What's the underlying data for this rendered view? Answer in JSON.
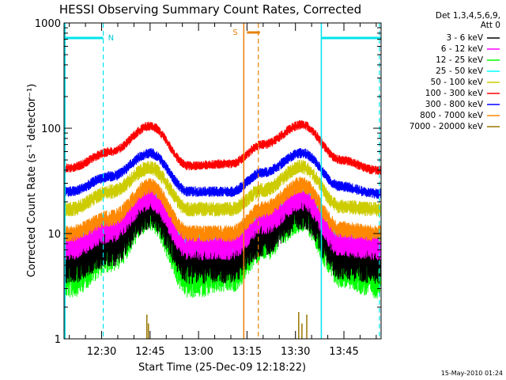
{
  "chart_data": {
    "type": "line",
    "title": "HESSI Observing Summary Count Rates, Corrected",
    "xlabel": "Start Time (25-Dec-09 12:18:22)",
    "ylabel": "Corrected Count Rate (s⁻¹ detector⁻¹)",
    "yscale": "log",
    "ylim": [
      1,
      1000
    ],
    "y_tick_labels": [
      "1",
      "10",
      "100",
      "1000"
    ],
    "xlim": [
      "12:18:22",
      "13:56:30"
    ],
    "x_tick_labels": [
      "12:30",
      "12:45",
      "13:00",
      "13:15",
      "13:30",
      "13:45"
    ],
    "legend_header": [
      "Det 1,3,4,5,6,9,",
      "Att 0"
    ],
    "series": [
      {
        "name": "3 - 6 keV",
        "color": "#000000",
        "times": [
          "12:20",
          "12:33",
          "12:45",
          "12:57",
          "13:10",
          "13:20",
          "13:32",
          "13:44",
          "13:55"
        ],
        "values": [
          5.5,
          8,
          18,
          5.5,
          5.5,
          10,
          18,
          6,
          5.5
        ]
      },
      {
        "name": "6 - 12 keV",
        "color": "#ff00ff",
        "times": [
          "12:20",
          "12:33",
          "12:45",
          "12:57",
          "13:10",
          "13:20",
          "13:32",
          "13:44",
          "13:55"
        ],
        "values": [
          7.5,
          11,
          22,
          7.5,
          7.5,
          13,
          22,
          8,
          7.5
        ]
      },
      {
        "name": "12 - 25 keV",
        "color": "#00ff00",
        "times": [
          "12:20",
          "12:33",
          "12:45",
          "12:57",
          "13:10",
          "13:20",
          "13:32",
          "13:44",
          "13:55"
        ],
        "values": [
          4,
          7,
          17,
          4,
          4.5,
          9,
          17,
          5,
          4
        ]
      },
      {
        "name": "25 - 50 keV",
        "color": "#00ffff",
        "times": [
          "12:20",
          "12:33",
          "12:45",
          "12:57",
          "13:10",
          "13:20",
          "13:32",
          "13:44",
          "13:55"
        ],
        "values": [
          8,
          12,
          24,
          8,
          8,
          14,
          24,
          9,
          8
        ]
      },
      {
        "name": "50 - 100 keV",
        "color": "#cccc00",
        "times": [
          "12:20",
          "12:33",
          "12:45",
          "12:57",
          "13:10",
          "13:20",
          "13:32",
          "13:44",
          "13:55"
        ],
        "values": [
          17,
          25,
          42,
          17,
          17,
          26,
          43,
          18,
          17
        ]
      },
      {
        "name": "100 - 300 keV",
        "color": "#ff0000",
        "times": [
          "12:20",
          "12:33",
          "12:45",
          "12:57",
          "13:10",
          "13:20",
          "13:32",
          "13:44",
          "13:55"
        ],
        "values": [
          42,
          60,
          105,
          44,
          46,
          70,
          108,
          50,
          40
        ]
      },
      {
        "name": "300 - 800 keV",
        "color": "#0000ff",
        "times": [
          "12:20",
          "12:33",
          "12:45",
          "12:57",
          "13:10",
          "13:20",
          "13:32",
          "13:44",
          "13:55"
        ],
        "values": [
          25,
          35,
          58,
          25,
          25,
          38,
          58,
          28,
          24
        ]
      },
      {
        "name": "800 - 7000 keV",
        "color": "#ff8800",
        "times": [
          "12:20",
          "12:33",
          "12:45",
          "12:57",
          "13:10",
          "13:20",
          "13:32",
          "13:44",
          "13:55"
        ],
        "values": [
          10,
          14,
          28,
          10,
          10,
          17,
          29,
          11,
          10
        ]
      },
      {
        "name": "7000 - 20000 keV",
        "color": "#997700",
        "times": [
          "12:20",
          "12:33",
          "12:45",
          "12:57",
          "13:10",
          "13:20",
          "13:32",
          "13:44",
          "13:55"
        ],
        "values": [
          1,
          1,
          1,
          1,
          1,
          1,
          1,
          1,
          1
        ]
      }
    ],
    "annotations": {
      "night_label": "N",
      "saa_label": "S",
      "night_bars": [
        {
          "start": "12:18:22",
          "end": "12:30:30"
        },
        {
          "start": "13:38:00",
          "end": "13:56:30"
        }
      ],
      "saa_bar": {
        "start": "13:15:00",
        "end": "13:19:00"
      },
      "cyan_dashed_times": [
        "12:30:30",
        "13:56:00"
      ],
      "cyan_solid_times": [
        "12:18:40",
        "13:38:00"
      ],
      "orange_solid_time": "13:14:00",
      "orange_dashed_time": "13:18:30",
      "spikes": [
        {
          "time": "12:44:00",
          "peak": 1.7
        },
        {
          "time": "12:44:30",
          "peak": 1.4
        },
        {
          "time": "13:31:00",
          "peak": 1.8
        },
        {
          "time": "13:32:00",
          "peak": 1.4
        },
        {
          "time": "13:33:30",
          "peak": 1.7
        }
      ]
    },
    "grid": false,
    "legend_position": "right"
  },
  "timestamp": "15-May-2010 01:24"
}
